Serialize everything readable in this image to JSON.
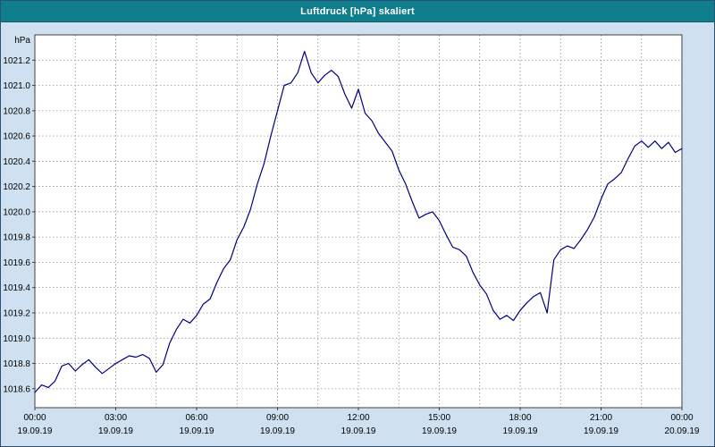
{
  "window": {
    "title": "Luftdruck [hPa] skaliert"
  },
  "colors": {
    "titlebar": "#117E8E",
    "title_text": "#FFFFFF",
    "window_background": "#CFE0F0",
    "plot_background": "#FFFFFF",
    "plot_border": "#404040",
    "gridline": "#808080",
    "line": "#000080",
    "tick_text": "#000000"
  },
  "chart_data": {
    "type": "line",
    "title": "Luftdruck [hPa] skaliert",
    "ylabel": "hPa",
    "xlabel": "",
    "legend": "none",
    "grid": "dashed, vertical every 1.5 h, horizontal every 0.2 hPa",
    "xlim_hours": [
      0,
      24
    ],
    "ylim": [
      1018.45,
      1021.4
    ],
    "y_ticks": [
      1018.6,
      1018.8,
      1019.0,
      1019.2,
      1019.4,
      1019.6,
      1019.8,
      1020.0,
      1020.2,
      1020.4,
      1020.6,
      1020.8,
      1021.0,
      1021.2
    ],
    "grid_x_step_hours": 1.5,
    "x_ticks": [
      {
        "hour": 0,
        "time": "00:00",
        "date": "19.09.19"
      },
      {
        "hour": 3,
        "time": "03:00",
        "date": "19.09.19"
      },
      {
        "hour": 6,
        "time": "06:00",
        "date": "19.09.19"
      },
      {
        "hour": 9,
        "time": "09:00",
        "date": "19.09.19"
      },
      {
        "hour": 12,
        "time": "12:00",
        "date": "19.09.19"
      },
      {
        "hour": 15,
        "time": "15:00",
        "date": "19.09.19"
      },
      {
        "hour": 18,
        "time": "18:00",
        "date": "19.09.19"
      },
      {
        "hour": 21,
        "time": "21:00",
        "date": "19.09.19"
      },
      {
        "hour": 24,
        "time": "00:00",
        "date": "20.09.19"
      }
    ],
    "series": [
      {
        "name": "Luftdruck",
        "color": "#000080",
        "x_start_hours": 0,
        "x_step_hours": 0.25,
        "y": [
          1018.57,
          1018.63,
          1018.61,
          1018.66,
          1018.78,
          1018.8,
          1018.74,
          1018.79,
          1018.83,
          1018.77,
          1018.72,
          1018.76,
          1018.8,
          1018.83,
          1018.86,
          1018.85,
          1018.87,
          1018.84,
          1018.73,
          1018.79,
          1018.96,
          1019.07,
          1019.15,
          1019.12,
          1019.18,
          1019.27,
          1019.31,
          1019.44,
          1019.55,
          1019.62,
          1019.78,
          1019.88,
          1020.02,
          1020.22,
          1020.38,
          1020.6,
          1020.8,
          1021.0,
          1021.02,
          1021.1,
          1021.27,
          1021.1,
          1021.02,
          1021.08,
          1021.12,
          1021.07,
          1020.93,
          1020.82,
          1020.97,
          1020.78,
          1020.72,
          1020.62,
          1020.55,
          1020.48,
          1020.33,
          1020.22,
          1020.08,
          1019.95,
          1019.98,
          1020.0,
          1019.93,
          1019.82,
          1019.72,
          1019.7,
          1019.65,
          1019.52,
          1019.42,
          1019.35,
          1019.22,
          1019.15,
          1019.18,
          1019.14,
          1019.22,
          1019.28,
          1019.33,
          1019.36,
          1019.2,
          1019.62,
          1019.7,
          1019.73,
          1019.71,
          1019.78,
          1019.86,
          1019.96,
          1020.1,
          1020.22,
          1020.26,
          1020.31,
          1020.42,
          1020.52,
          1020.56,
          1020.51,
          1020.56,
          1020.5,
          1020.55,
          1020.47,
          1020.5
        ]
      }
    ]
  }
}
